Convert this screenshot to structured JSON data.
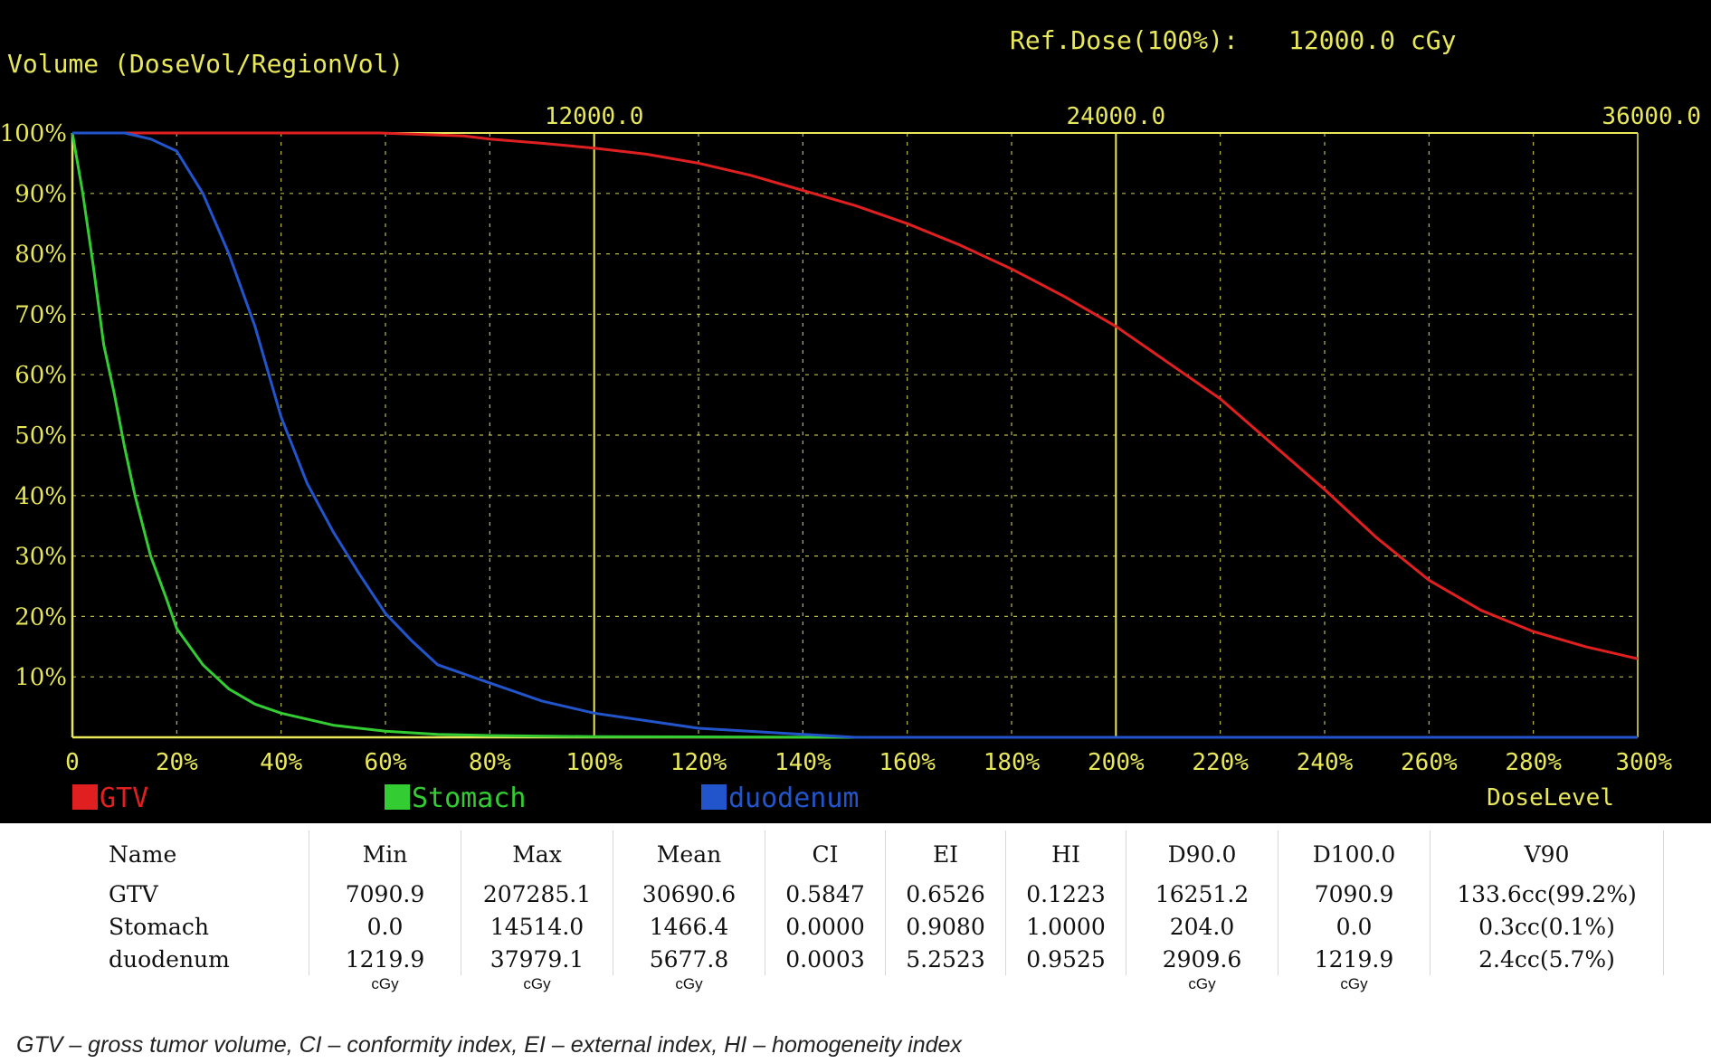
{
  "header": {
    "volume_label": "Volume (DoseVol/RegionVol)",
    "ref_dose_label": "Ref.Dose(100%):",
    "ref_dose_value": "12000.0 cGy"
  },
  "colors": {
    "gtv": "#e02020",
    "stomach": "#33cc33",
    "duodenum": "#2255cc",
    "axis": "#e8e85a"
  },
  "chart_data": {
    "type": "line",
    "title": "",
    "ylabel": "Volume (DoseVol/RegionVol)",
    "xlabel": "DoseLevel",
    "xlim": [
      0,
      300
    ],
    "ylim": [
      0,
      100
    ],
    "x_ticks": [
      "0",
      "20%",
      "40%",
      "60%",
      "80%",
      "100%",
      "120%",
      "140%",
      "160%",
      "180%",
      "200%",
      "220%",
      "240%",
      "260%",
      "280%",
      "300%"
    ],
    "y_ticks": [
      "10%",
      "20%",
      "30%",
      "40%",
      "50%",
      "60%",
      "70%",
      "80%",
      "90%",
      "100%"
    ],
    "top_ticks": [
      "12000.0",
      "24000.0",
      "36000.0"
    ],
    "top_tick_positions": [
      100,
      200,
      300
    ],
    "grid": true,
    "legend_position": "bottom-left",
    "series": [
      {
        "name": "GTV",
        "color": "#e02020",
        "x": [
          0,
          59,
          75,
          80,
          90,
          100,
          110,
          120,
          130,
          140,
          150,
          160,
          170,
          180,
          190,
          200,
          210,
          220,
          230,
          240,
          250,
          260,
          270,
          280,
          290,
          300
        ],
        "y": [
          100,
          100,
          99.5,
          99,
          98.3,
          97.5,
          96.5,
          95,
          93,
          90.5,
          88,
          85,
          81.5,
          77.5,
          73,
          68,
          62,
          56,
          48.5,
          41,
          33,
          26,
          21,
          17.5,
          15,
          13
        ]
      },
      {
        "name": "Stomach",
        "color": "#33cc33",
        "x": [
          0,
          2,
          4,
          6,
          8,
          10,
          12,
          15,
          18,
          20,
          25,
          30,
          35,
          40,
          50,
          60,
          70,
          80,
          100,
          150
        ],
        "y": [
          100,
          90,
          78,
          65,
          57,
          48,
          40,
          30,
          23,
          18,
          12,
          8,
          5.5,
          4,
          2,
          1,
          0.5,
          0.3,
          0.1,
          0
        ]
      },
      {
        "name": "duodenum",
        "color": "#2255cc",
        "x": [
          0,
          10,
          15,
          20,
          25,
          30,
          35,
          40,
          45,
          50,
          55,
          60,
          65,
          70,
          80,
          90,
          100,
          120,
          140,
          150,
          300
        ],
        "y": [
          100,
          100,
          99,
          97,
          90,
          80,
          68,
          53,
          42,
          34,
          27,
          20.5,
          16,
          12,
          9,
          6,
          4,
          1.5,
          0.5,
          0,
          0
        ]
      }
    ]
  },
  "table": {
    "headers": [
      "Name",
      "Min",
      "Max",
      "Mean",
      "CI",
      "EI",
      "HI",
      "D90.0",
      "D100.0",
      "V90"
    ],
    "rows": [
      [
        "GTV",
        "7090.9",
        "207285.1",
        "30690.6",
        "0.5847",
        "0.6526",
        "0.1223",
        "16251.2",
        "7090.9",
        "133.6cc(99.2%)"
      ],
      [
        "Stomach",
        "0.0",
        "14514.0",
        "1466.4",
        "0.0000",
        "0.9080",
        "1.0000",
        "204.0",
        "0.0",
        "0.3cc(0.1%)"
      ],
      [
        "duodenum",
        "1219.9",
        "37979.1",
        "5677.8",
        "0.0003",
        "5.2523",
        "0.9525",
        "2909.6",
        "1219.9",
        "2.4cc(5.7%)"
      ]
    ],
    "units": [
      "",
      "cGy",
      "cGy",
      "cGy",
      "",
      "",
      "",
      "cGy",
      "cGy",
      ""
    ]
  },
  "caption": "GTV – gross tumor volume, CI – conformity index, EI – external index, HI – homogeneity index"
}
